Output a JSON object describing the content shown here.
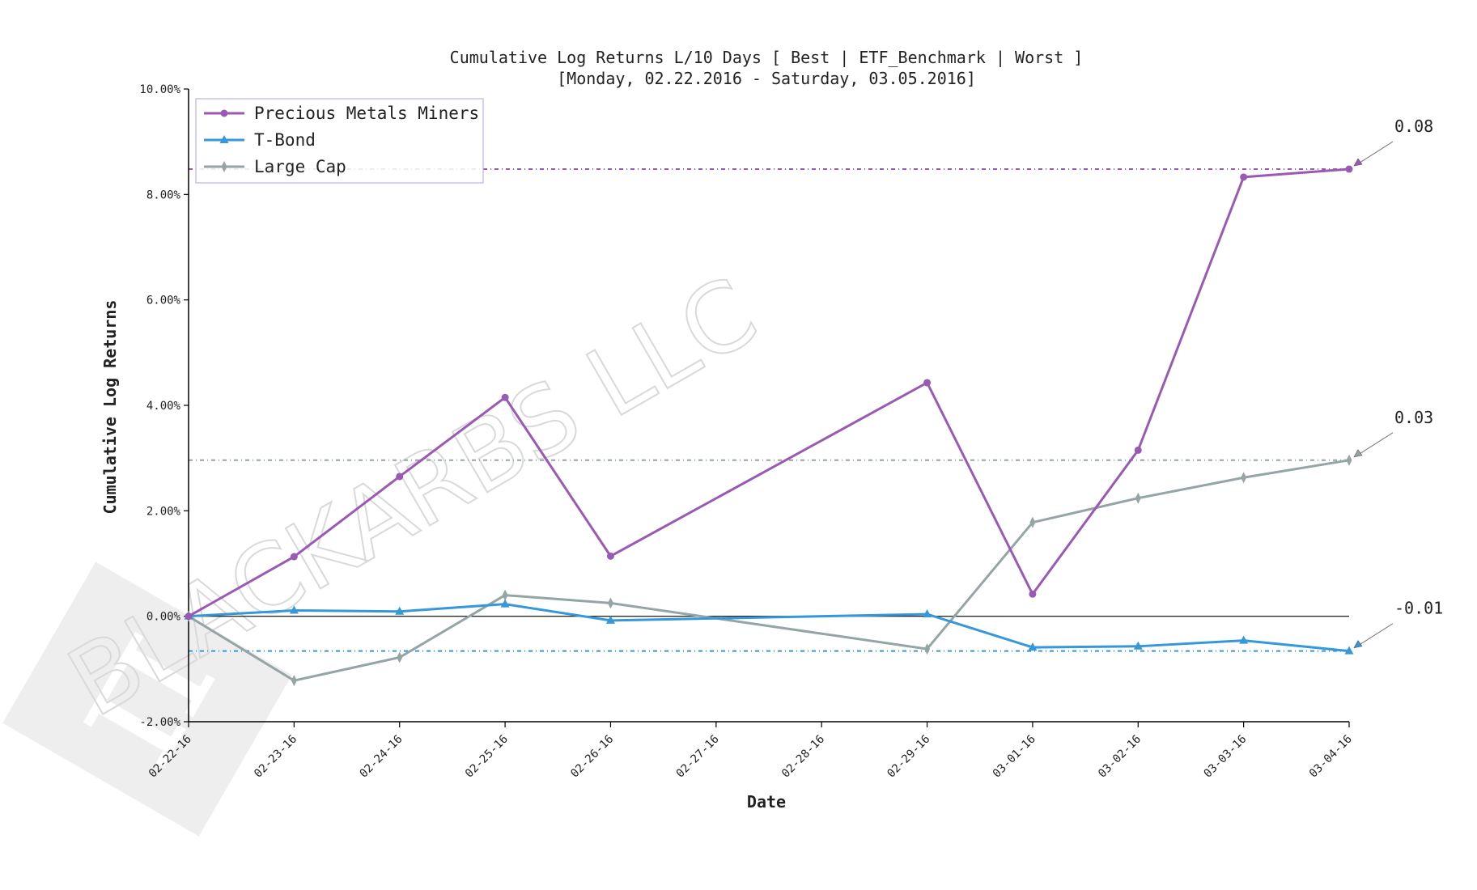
{
  "chart_data": {
    "type": "line",
    "title_line1": "Cumulative Log Returns L/10 Days [ Best | ETF_Benchmark | Worst ]",
    "title_line2": "[Monday, 02.22.2016 - Saturday, 03.05.2016]",
    "xlabel": "Date",
    "ylabel": "Cumulative Log Returns",
    "ylim": [
      -0.02,
      0.1
    ],
    "yticks": [
      "-2.00%",
      "0.00%",
      "2.00%",
      "4.00%",
      "6.00%",
      "8.00%",
      "10.00%"
    ],
    "x_ticks": [
      "02-22-16",
      "02-23-16",
      "02-24-16",
      "02-25-16",
      "02-26-16",
      "02-27-16",
      "02-28-16",
      "02-29-16",
      "03-01-16",
      "03-02-16",
      "03-03-16",
      "03-04-16"
    ],
    "zero_line": true,
    "legend_position": "top-left",
    "series": [
      {
        "name": "Precious Metals Miners",
        "color": "#9b59b6",
        "marker": "circle",
        "points": [
          [
            "02-22-16",
            0.0
          ],
          [
            "02-23-16",
            0.0113
          ],
          [
            "02-24-16",
            0.0265
          ],
          [
            "02-25-16",
            0.0415
          ],
          [
            "02-26-16",
            0.0114
          ],
          [
            "02-29-16",
            0.0443
          ],
          [
            "03-01-16",
            0.0042
          ],
          [
            "03-02-16",
            0.0315
          ],
          [
            "03-03-16",
            0.0833
          ],
          [
            "03-04-16",
            0.0848
          ]
        ],
        "final_value_label": "0.08"
      },
      {
        "name": "T-Bond",
        "color": "#3498db",
        "marker": "triangle",
        "points": [
          [
            "02-22-16",
            0.0
          ],
          [
            "02-23-16",
            0.0011
          ],
          [
            "02-24-16",
            0.0009
          ],
          [
            "02-25-16",
            0.0023
          ],
          [
            "02-26-16",
            -0.0008
          ],
          [
            "02-29-16",
            0.0004
          ],
          [
            "03-01-16",
            -0.0059
          ],
          [
            "03-02-16",
            -0.0057
          ],
          [
            "03-03-16",
            -0.0046
          ],
          [
            "03-04-16",
            -0.0066
          ]
        ],
        "final_value_label": "-0.01"
      },
      {
        "name": "Large Cap",
        "color": "#95a5a6",
        "marker": "thin_diamond",
        "points": [
          [
            "02-22-16",
            0.0
          ],
          [
            "02-23-16",
            -0.0122
          ],
          [
            "02-24-16",
            -0.0078
          ],
          [
            "02-25-16",
            0.004
          ],
          [
            "02-26-16",
            0.0025
          ],
          [
            "02-29-16",
            -0.0062
          ],
          [
            "03-01-16",
            0.0178
          ],
          [
            "03-02-16",
            0.0224
          ],
          [
            "03-03-16",
            0.0263
          ],
          [
            "03-04-16",
            0.0296
          ]
        ],
        "final_value_label": "0.03"
      }
    ],
    "watermark": {
      "text": "BLACKARBS LLC",
      "logo_icon": "pi-icon"
    }
  }
}
